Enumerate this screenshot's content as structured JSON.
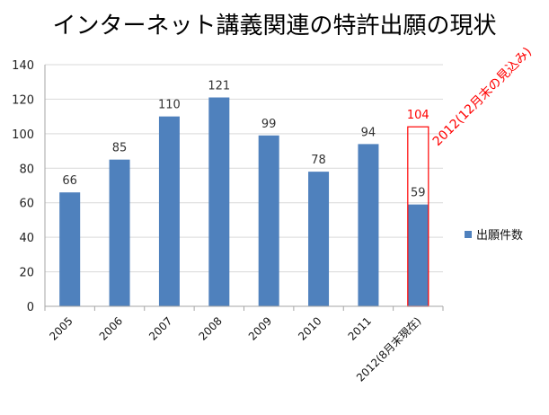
{
  "title": "インターネット講義関連の特許出願の現状",
  "chart_data": {
    "type": "bar",
    "categories": [
      "2005",
      "2006",
      "2007",
      "2008",
      "2009",
      "2010",
      "2011",
      "2012(8月末現在)"
    ],
    "series": [
      {
        "name": "出願件数",
        "values": [
          66,
          85,
          110,
          121,
          99,
          78,
          94,
          59
        ]
      }
    ],
    "ylim": [
      0,
      140
    ],
    "yticks": [
      0,
      20,
      40,
      60,
      80,
      100,
      120,
      140
    ],
    "grid": true,
    "legend": "right",
    "annotation": {
      "category": "2012(8月末現在)",
      "value": 104,
      "label": "2012(12月末の見込み)",
      "color": "#ff0000"
    },
    "colors": {
      "bar": "#4f81bd",
      "grid": "#d9d9d9",
      "annotation": "#ff0000"
    }
  }
}
